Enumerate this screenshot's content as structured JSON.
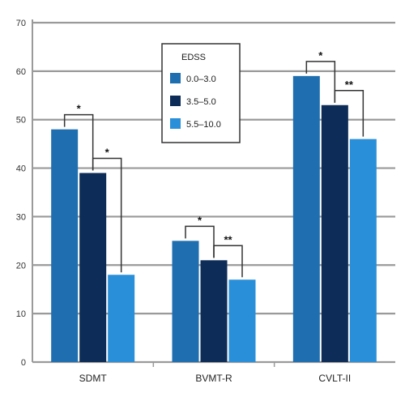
{
  "chart_data": {
    "type": "bar",
    "categories": [
      "SDMT",
      "BVMT-R",
      "CVLT-II"
    ],
    "series": [
      {
        "name": "0.0–3.0",
        "values": [
          48,
          25,
          59
        ]
      },
      {
        "name": "3.5–5.0",
        "values": [
          39,
          21,
          53
        ]
      },
      {
        "name": "5.5–10.0",
        "values": [
          18,
          17,
          46
        ]
      }
    ],
    "ylim": [
      0,
      70
    ],
    "yticks": [
      0,
      10,
      20,
      30,
      40,
      50,
      60,
      70
    ],
    "grid": true,
    "legend": {
      "title": "EDSS",
      "placement": "top-center"
    },
    "colors": [
      "#1f6fb0",
      "#0d2c57",
      "#2a8fd9"
    ],
    "significance": [
      {
        "category": 0,
        "from": 0,
        "to": 1,
        "label": "*"
      },
      {
        "category": 0,
        "from": 1,
        "to": 2,
        "label": "*"
      },
      {
        "category": 1,
        "from": 0,
        "to": 1,
        "label": "*"
      },
      {
        "category": 1,
        "from": 1,
        "to": 2,
        "label": "**"
      },
      {
        "category": 2,
        "from": 0,
        "to": 1,
        "label": "*"
      },
      {
        "category": 2,
        "from": 1,
        "to": 2,
        "label": "**"
      }
    ]
  }
}
